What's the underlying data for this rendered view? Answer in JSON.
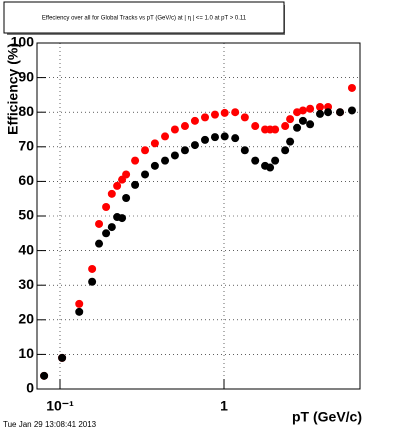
{
  "chart_data": {
    "type": "scatter",
    "title": "Effeciency over all for Global Tracks vs pT (GeV/c) at | η | <= 1.0 at pT > 0.11",
    "x_label": "pT (GeV/c)",
    "y_label": "Efficiency (%)",
    "timestamp": "Tue Jan 29 13:08:41 2013",
    "log_x": true,
    "grid": true,
    "xlim": [
      0.0724,
      6.75
    ],
    "ylim": [
      0,
      100
    ],
    "xticks": [
      {
        "value": 0.1,
        "label": "10⁻¹"
      },
      1
    ],
    "yticks": [
      0,
      10,
      20,
      30,
      40,
      50,
      60,
      70,
      80,
      90,
      100
    ],
    "x": [
      0.08,
      0.103,
      0.131,
      0.157,
      0.173,
      0.191,
      0.207,
      0.223,
      0.239,
      0.253,
      0.287,
      0.33,
      0.379,
      0.437,
      0.502,
      0.578,
      0.665,
      0.766,
      0.881,
      1.01,
      1.17,
      1.34,
      1.55,
      1.78,
      1.91,
      2.05,
      2.36,
      2.53,
      2.79,
      3.03,
      3.35,
      3.85,
      4.31,
      5.1,
      6.03
    ],
    "series": [
      {
        "color": "#ff0000",
        "values": [
          3.8,
          9,
          24.6,
          34.7,
          47.7,
          52.6,
          56.4,
          58.7,
          60.5,
          62,
          66,
          69,
          71,
          73,
          75,
          76,
          77.5,
          78.5,
          79.3,
          79.8,
          80,
          78.5,
          76,
          75,
          75,
          75,
          76,
          78,
          80,
          80.5,
          81,
          81.5,
          81.5,
          80,
          87
        ]
      },
      {
        "color": "#000000",
        "values": [
          3.8,
          9,
          22.3,
          31,
          42,
          45,
          46.8,
          49.7,
          49.4,
          55.2,
          59,
          62,
          64.5,
          66,
          67.5,
          69,
          70.5,
          72,
          72.8,
          73,
          72.5,
          69,
          66,
          64.5,
          64,
          66,
          69,
          71.5,
          75.5,
          77.5,
          76.5,
          79.5,
          80,
          80,
          80.5
        ]
      }
    ]
  }
}
